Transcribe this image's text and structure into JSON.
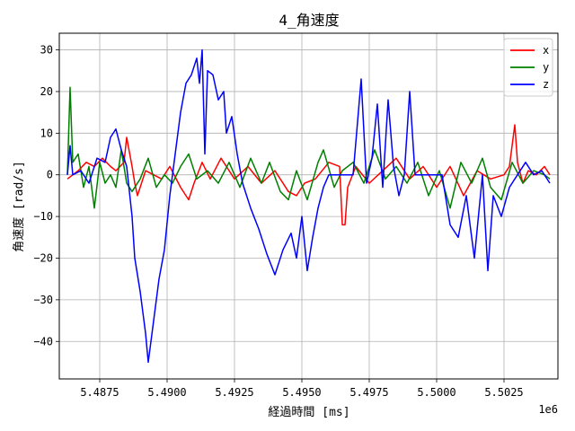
{
  "chart_data": {
    "type": "line",
    "title": "4_角速度",
    "xlabel": "経過時間 [ms]",
    "ylabel": "角速度 [rad/s]",
    "x_offset_label": "1e6",
    "xlim": [
      5.486,
      5.5045
    ],
    "ylim": [
      -49,
      34
    ],
    "x_ticks": [
      5.4875,
      5.49,
      5.4925,
      5.495,
      5.4975,
      5.5,
      5.5025
    ],
    "x_tick_labels": [
      "5.4875",
      "5.4900",
      "5.4925",
      "5.4950",
      "5.4975",
      "5.5000",
      "5.5025"
    ],
    "y_ticks": [
      -40,
      -30,
      -20,
      -10,
      0,
      10,
      20,
      30
    ],
    "y_tick_labels": [
      "−40",
      "−30",
      "−20",
      "−10",
      "0",
      "10",
      "20",
      "30"
    ],
    "grid": true,
    "legend_position": "top-right",
    "series": [
      {
        "name": "x",
        "color": "#ff0000",
        "x": [
          5.4863,
          5.4865,
          5.4867,
          5.487,
          5.4873,
          5.4876,
          5.4879,
          5.4881,
          5.4884,
          5.4885,
          5.4887,
          5.4888,
          5.4889,
          5.4892,
          5.4895,
          5.4898,
          5.4901,
          5.4905,
          5.4908,
          5.491,
          5.4913,
          5.4916,
          5.492,
          5.4925,
          5.493,
          5.4935,
          5.494,
          5.4945,
          5.4948,
          5.4951,
          5.4955,
          5.496,
          5.4964,
          5.4965,
          5.4966,
          5.4967,
          5.497,
          5.4975,
          5.498,
          5.4985,
          5.499,
          5.4995,
          5.5,
          5.5005,
          5.501,
          5.5015,
          5.502,
          5.5025,
          5.5027,
          5.5029,
          5.503,
          5.5032,
          5.5034,
          5.5037,
          5.504,
          5.5042
        ],
        "y": [
          -1,
          0,
          1,
          3,
          2,
          4,
          2,
          1,
          3,
          9,
          2,
          -2,
          -5,
          1,
          0,
          -1,
          2,
          -3,
          -6,
          -2,
          3,
          -1,
          4,
          -1,
          2,
          -2,
          1,
          -4,
          -5,
          -2,
          -1,
          3,
          2,
          -12,
          -12,
          -3,
          2,
          -2,
          1,
          4,
          -1,
          2,
          -3,
          2,
          -5,
          1,
          -1,
          0,
          2,
          12,
          3,
          -2,
          1,
          0,
          2,
          0
        ]
      },
      {
        "name": "y",
        "color": "#008000",
        "x": [
          5.4863,
          5.4864,
          5.4865,
          5.4867,
          5.4869,
          5.4871,
          5.4873,
          5.4875,
          5.4877,
          5.4879,
          5.4881,
          5.4883,
          5.4885,
          5.4887,
          5.489,
          5.4893,
          5.4896,
          5.4899,
          5.4902,
          5.4905,
          5.4908,
          5.4911,
          5.4915,
          5.4919,
          5.4923,
          5.4927,
          5.4931,
          5.4935,
          5.4938,
          5.4942,
          5.4945,
          5.4948,
          5.4952,
          5.4956,
          5.4958,
          5.4962,
          5.4965,
          5.4969,
          5.4973,
          5.4977,
          5.4981,
          5.4985,
          5.4989,
          5.4993,
          5.4997,
          5.5001,
          5.5005,
          5.5009,
          5.5013,
          5.5017,
          5.502,
          5.5024,
          5.5028,
          5.5032,
          5.5036,
          5.504,
          5.5042
        ],
        "y": [
          0,
          21,
          3,
          5,
          -3,
          2,
          -8,
          3,
          -2,
          0,
          -3,
          6,
          -2,
          -4,
          -1,
          4,
          -3,
          0,
          -2,
          2,
          5,
          -1,
          1,
          -2,
          3,
          -3,
          4,
          -2,
          3,
          -4,
          -6,
          1,
          -6,
          3,
          6,
          -3,
          1,
          3,
          -2,
          6,
          -1,
          2,
          -2,
          3,
          -5,
          1,
          -8,
          3,
          -2,
          4,
          -3,
          -6,
          3,
          -2,
          1,
          0,
          -1
        ]
      },
      {
        "name": "z",
        "color": "#0000ff",
        "x": [
          5.4863,
          5.4864,
          5.4865,
          5.4868,
          5.4871,
          5.4874,
          5.4877,
          5.4879,
          5.4881,
          5.4883,
          5.4885,
          5.4887,
          5.4888,
          5.489,
          5.4891,
          5.4892,
          5.4893,
          5.4894,
          5.4895,
          5.4896,
          5.4897,
          5.4899,
          5.4901,
          5.4903,
          5.4905,
          5.4907,
          5.4909,
          5.4911,
          5.4912,
          5.4913,
          5.4914,
          5.4915,
          5.4917,
          5.4919,
          5.4921,
          5.4922,
          5.4924,
          5.4926,
          5.4928,
          5.4931,
          5.4934,
          5.4937,
          5.494,
          5.4943,
          5.4946,
          5.4948,
          5.495,
          5.4952,
          5.4954,
          5.4956,
          5.4958,
          5.496,
          5.4962,
          5.4964,
          5.4966,
          5.4969,
          5.4972,
          5.4974,
          5.4976,
          5.4978,
          5.498,
          5.4982,
          5.4984,
          5.4986,
          5.4988,
          5.499,
          5.4992,
          5.4994,
          5.4996,
          5.4999,
          5.5002,
          5.5005,
          5.5008,
          5.5011,
          5.5014,
          5.5017,
          5.5019,
          5.5021,
          5.5024,
          5.5027,
          5.503,
          5.5033,
          5.5036,
          5.5039,
          5.5042
        ],
        "y": [
          0,
          7,
          0,
          1,
          -2,
          4,
          3,
          9,
          11,
          6,
          2,
          -10,
          -20,
          -28,
          -33,
          -38,
          -45,
          -40,
          -35,
          -30,
          -25,
          -18,
          -5,
          5,
          15,
          22,
          24,
          28,
          22,
          30,
          5,
          25,
          24,
          18,
          20,
          10,
          14,
          5,
          -2,
          -8,
          -13,
          -19,
          -24,
          -18,
          -14,
          -20,
          -10,
          -23,
          -15,
          -8,
          -3,
          0,
          0,
          0,
          0,
          0,
          23,
          -2,
          4,
          17,
          -3,
          18,
          2,
          -5,
          0,
          20,
          0,
          0,
          0,
          0,
          0,
          -12,
          -15,
          -5,
          -20,
          0,
          -23,
          -5,
          -10,
          -3,
          0,
          3,
          0,
          1,
          -2
        ]
      }
    ]
  }
}
